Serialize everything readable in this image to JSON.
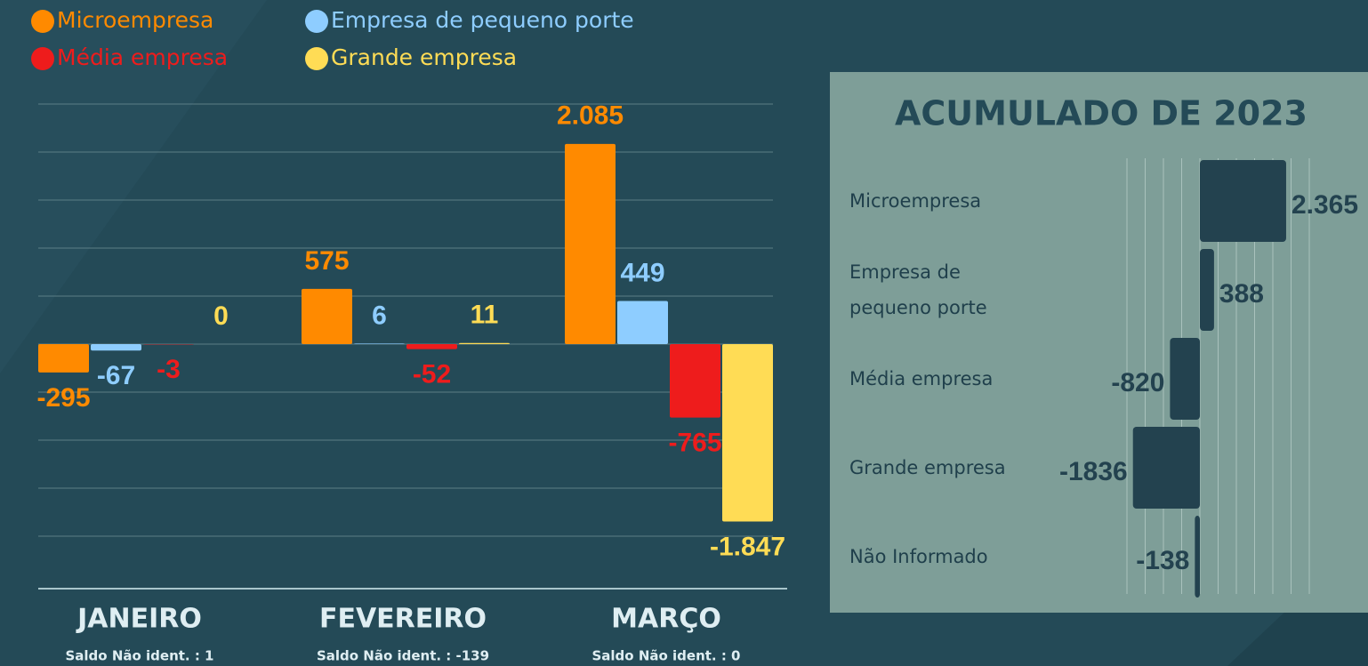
{
  "chart_data": [
    {
      "type": "bar",
      "categories": [
        "JANEIRO",
        "FEVEREIRO",
        "MARÇO"
      ],
      "notes": [
        "Saldo Não ident. : 1",
        "Saldo Não ident. : -139",
        "Saldo Não ident. : 0"
      ],
      "series": [
        {
          "name": "Microempresa",
          "color": "#ff8a00",
          "values": [
            -295,
            575,
            2085
          ],
          "value_labels": [
            "-295",
            "575",
            "2.085"
          ]
        },
        {
          "name": "Empresa de pequeno porte",
          "color": "#8ecdff",
          "values": [
            -67,
            6,
            449
          ]
        },
        {
          "name": "Média empresa",
          "color": "#ee1c1c",
          "values": [
            -3,
            -52,
            -765
          ]
        },
        {
          "name": "Grande empresa",
          "color": "#ffdc55",
          "values": [
            0,
            11,
            -1847
          ],
          "value_labels": [
            "0",
            "11",
            "-1.847"
          ]
        }
      ],
      "ylim": [
        -2000,
        2500
      ],
      "yticks": [
        -2000,
        -1500,
        -1000,
        -500,
        0,
        500,
        1000,
        1500,
        2000,
        2500
      ],
      "grid": true
    },
    {
      "type": "hbar",
      "title": "ACUMULADO DE 2023",
      "categories": [
        "Microempresa",
        "Empresa de pequeno porte",
        "Média empresa",
        "Grande empresa",
        "Não Informado"
      ],
      "values": [
        2365,
        388,
        -820,
        -1836,
        -138
      ],
      "value_labels": [
        "2.365",
        "388",
        "-820",
        "-1836",
        "-138"
      ],
      "color": "#23424f",
      "xlim": [
        -2000,
        3000
      ],
      "xticks": [
        -2000,
        -1500,
        -1000,
        -500,
        0,
        500,
        1000,
        1500,
        2000,
        2500,
        3000
      ],
      "grid": true
    }
  ]
}
